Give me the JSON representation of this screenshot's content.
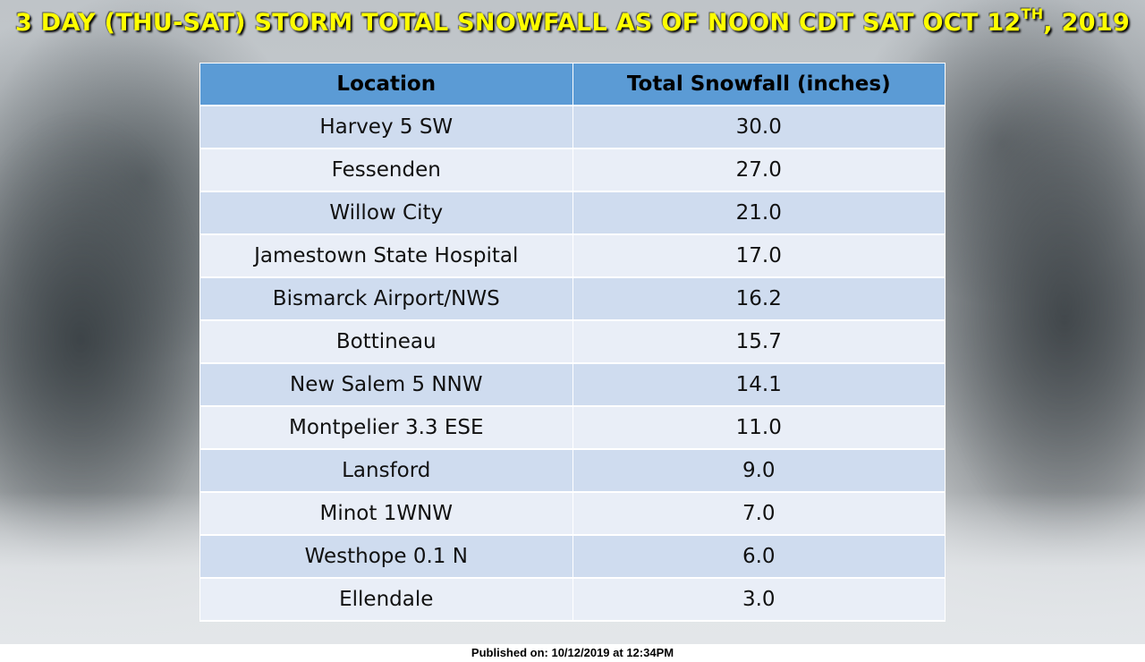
{
  "title": {
    "main": "3 DAY (THU-SAT) STORM TOTAL SNOWFALL AS OF NOON CDT SAT OCT 12",
    "superscript": "TH",
    "suffix": ", 2019"
  },
  "table": {
    "headers": [
      "Location",
      "Total Snowfall (inches)"
    ],
    "rows": [
      {
        "location": "Harvey 5 SW",
        "snowfall": "30.0"
      },
      {
        "location": "Fessenden",
        "snowfall": "27.0"
      },
      {
        "location": "Willow City",
        "snowfall": "21.0"
      },
      {
        "location": "Jamestown State Hospital",
        "snowfall": "17.0"
      },
      {
        "location": "Bismarck Airport/NWS",
        "snowfall": "16.2"
      },
      {
        "location": "Bottineau",
        "snowfall": "15.7"
      },
      {
        "location": "New Salem 5 NNW",
        "snowfall": "14.1"
      },
      {
        "location": "Montpelier 3.3 ESE",
        "snowfall": "11.0"
      },
      {
        "location": "Lansford",
        "snowfall": "9.0"
      },
      {
        "location": "Minot 1WNW",
        "snowfall": "7.0"
      },
      {
        "location": "Westhope 0.1 N",
        "snowfall": "6.0"
      },
      {
        "location": "Ellendale",
        "snowfall": "3.0"
      }
    ]
  },
  "footer": {
    "published": "Published on: 10/12/2019 at 12:34PM"
  },
  "colors": {
    "title": "#ffff00",
    "header_bg": "#5b9bd5",
    "row_odd": "#cfdcef",
    "row_even": "#e9eef7"
  }
}
